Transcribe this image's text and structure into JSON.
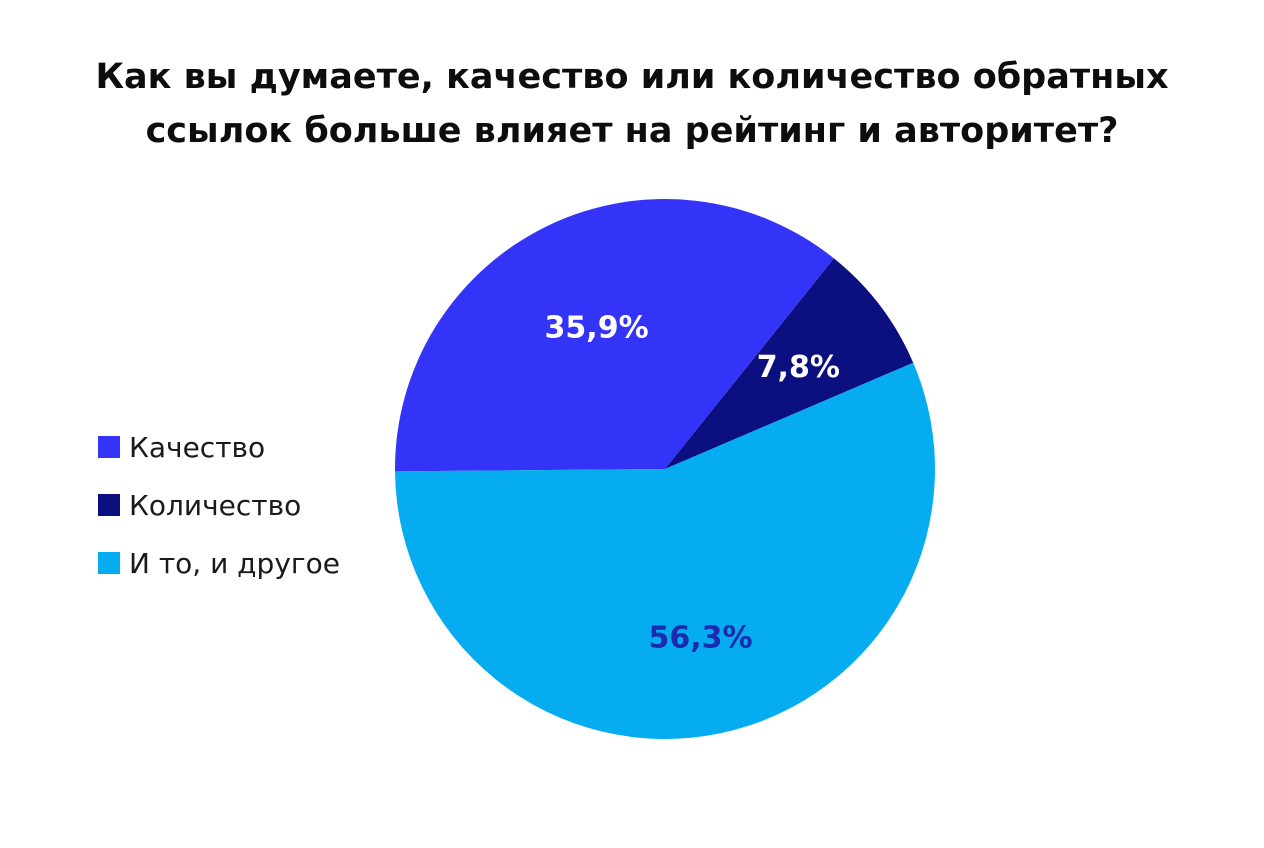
{
  "chart_data": {
    "type": "pie",
    "title_lines": [
      "Как вы думаете, качество или количество обратных",
      "ссылок больше влияет на рейтинг и авторитет?"
    ],
    "legend_position": "left",
    "slices": [
      {
        "name": "Качество",
        "value": 35.9,
        "label": "35,9%",
        "color": "#3434f8",
        "label_color": "#ffffff"
      },
      {
        "name": "Количество",
        "value": 7.8,
        "label": "7,8%",
        "color": "#0c0f80",
        "label_color": "#ffffff"
      },
      {
        "name": "И то, и другое",
        "value": 56.3,
        "label": "56,3%",
        "color": "#05adf0",
        "label_color": "#1a2bb0"
      }
    ]
  }
}
